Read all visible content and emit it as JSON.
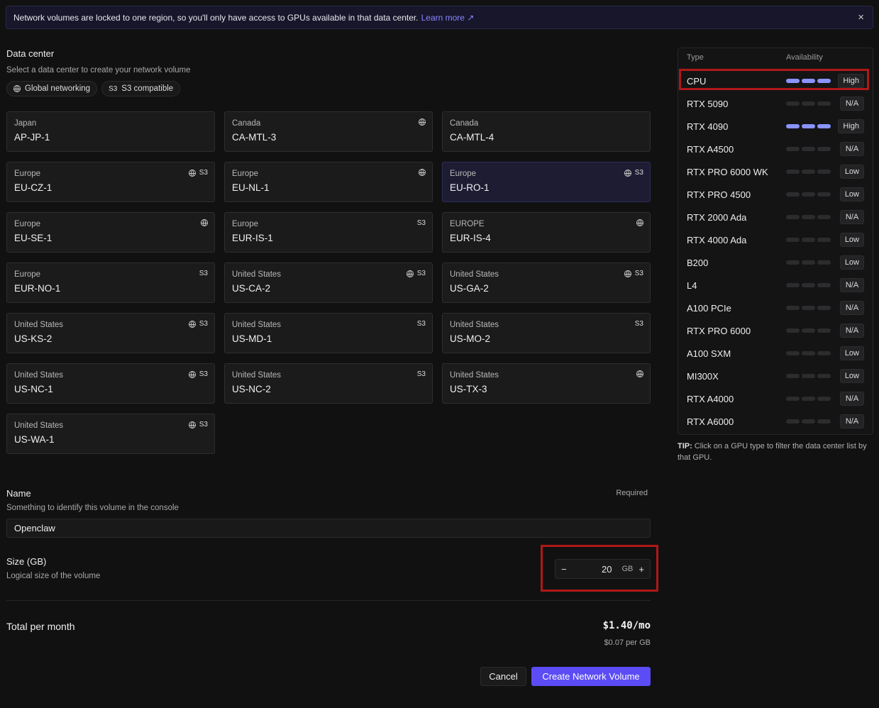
{
  "banner": {
    "text": "Network volumes are locked to one region, so you'll only have access to GPUs available in that data center.",
    "link": "Learn more",
    "close": "×"
  },
  "datacenter": {
    "title": "Data center",
    "subtitle": "Select a data center to create your network volume",
    "chips": [
      {
        "icon": "globe-icon",
        "label": "Global networking"
      },
      {
        "icon": "s3-icon",
        "glyph": "S3",
        "label": "S3 compatible"
      }
    ],
    "cards": [
      {
        "region": "Japan",
        "id": "AP-JP-1",
        "global": false,
        "s3": false
      },
      {
        "region": "Canada",
        "id": "CA-MTL-3",
        "global": true,
        "s3": false
      },
      {
        "region": "Canada",
        "id": "CA-MTL-4",
        "global": false,
        "s3": false
      },
      {
        "region": "Europe",
        "id": "EU-CZ-1",
        "global": true,
        "s3": true
      },
      {
        "region": "Europe",
        "id": "EU-NL-1",
        "global": true,
        "s3": false
      },
      {
        "region": "Europe",
        "id": "EU-RO-1",
        "global": true,
        "s3": true,
        "selected": true
      },
      {
        "region": "Europe",
        "id": "EU-SE-1",
        "global": true,
        "s3": false
      },
      {
        "region": "Europe",
        "id": "EUR-IS-1",
        "global": false,
        "s3": true
      },
      {
        "region": "EUROPE",
        "id": "EUR-IS-4",
        "global": true,
        "s3": false
      },
      {
        "region": "Europe",
        "id": "EUR-NO-1",
        "global": false,
        "s3": true
      },
      {
        "region": "United States",
        "id": "US-CA-2",
        "global": true,
        "s3": true
      },
      {
        "region": "United States",
        "id": "US-GA-2",
        "global": true,
        "s3": true
      },
      {
        "region": "United States",
        "id": "US-KS-2",
        "global": true,
        "s3": true
      },
      {
        "region": "United States",
        "id": "US-MD-1",
        "global": false,
        "s3": true
      },
      {
        "region": "United States",
        "id": "US-MO-2",
        "global": false,
        "s3": true
      },
      {
        "region": "United States",
        "id": "US-NC-1",
        "global": true,
        "s3": true
      },
      {
        "region": "United States",
        "id": "US-NC-2",
        "global": false,
        "s3": true
      },
      {
        "region": "United States",
        "id": "US-TX-3",
        "global": true,
        "s3": false
      },
      {
        "region": "United States",
        "id": "US-WA-1",
        "global": true,
        "s3": true
      }
    ]
  },
  "gpu_panel": {
    "col_type": "Type",
    "col_availability": "Availability",
    "accent": "#8b93ff",
    "rows": [
      {
        "name": "CPU",
        "level": "High",
        "filled": 3
      },
      {
        "name": "RTX 5090",
        "level": "N/A",
        "filled": 0
      },
      {
        "name": "RTX 4090",
        "level": "High",
        "filled": 3
      },
      {
        "name": "RTX A4500",
        "level": "N/A",
        "filled": 0
      },
      {
        "name": "RTX PRO 6000 WK",
        "level": "Low",
        "filled": 0
      },
      {
        "name": "RTX PRO 4500",
        "level": "Low",
        "filled": 0
      },
      {
        "name": "RTX 2000 Ada",
        "level": "N/A",
        "filled": 0
      },
      {
        "name": "RTX 4000 Ada",
        "level": "Low",
        "filled": 0
      },
      {
        "name": "B200",
        "level": "Low",
        "filled": 0
      },
      {
        "name": "L4",
        "level": "N/A",
        "filled": 0
      },
      {
        "name": "A100 PCIe",
        "level": "N/A",
        "filled": 0
      },
      {
        "name": "RTX PRO 6000",
        "level": "N/A",
        "filled": 0
      },
      {
        "name": "A100 SXM",
        "level": "Low",
        "filled": 0
      },
      {
        "name": "MI300X",
        "level": "Low",
        "filled": 0
      },
      {
        "name": "RTX A4000",
        "level": "N/A",
        "filled": 0
      },
      {
        "name": "RTX A6000",
        "level": "N/A",
        "filled": 0
      }
    ],
    "tip_label": "TIP:",
    "tip": "Click on a GPU type to filter the data center list by that GPU."
  },
  "name_field": {
    "label": "Name",
    "subtitle": "Something to identify this volume in the console",
    "required": "Required",
    "value": "Openclaw"
  },
  "size_field": {
    "label": "Size (GB)",
    "subtitle": "Logical size of the volume",
    "value": "20",
    "unit": "GB",
    "minus": "−",
    "plus": "+"
  },
  "total": {
    "label": "Total per month",
    "price": "$1.40/mo",
    "per_gb": "$0.07 per GB"
  },
  "actions": {
    "cancel": "Cancel",
    "create": "Create Network Volume"
  }
}
